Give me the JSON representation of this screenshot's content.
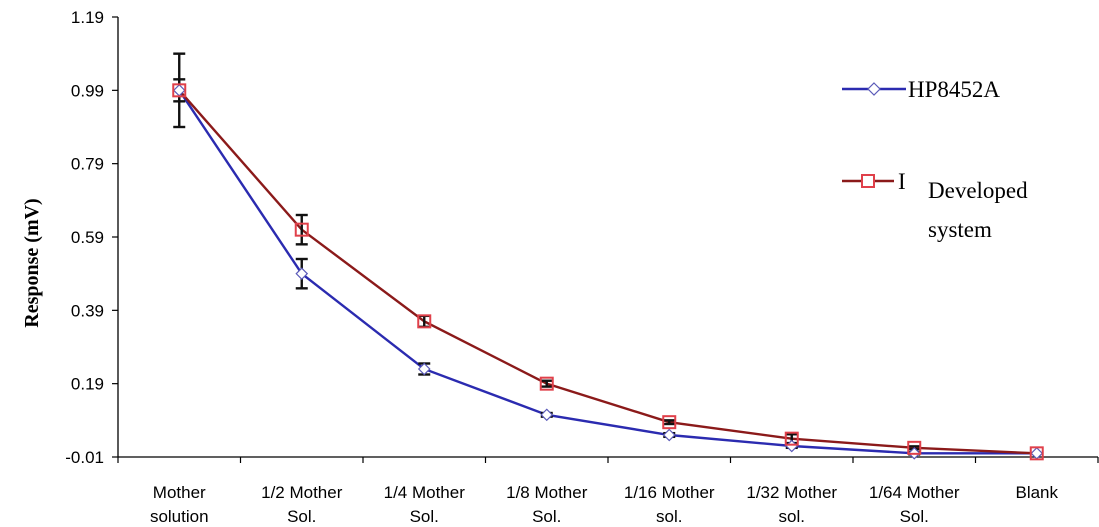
{
  "chart_data": {
    "type": "line",
    "categories": [
      [
        "Mother",
        "solution"
      ],
      [
        "1/2 Mother",
        "Sol."
      ],
      [
        "1/4 Mother",
        "Sol."
      ],
      [
        "1/8 Mother",
        "Sol."
      ],
      [
        "1/16 Mother",
        "sol."
      ],
      [
        "1/32 Mother",
        "sol."
      ],
      [
        "1/64 Mother",
        "Sol."
      ],
      [
        "Blank"
      ]
    ],
    "ylabel": "Response (mV)",
    "ylim": [
      -0.01,
      1.19
    ],
    "yticks": [
      "1.19",
      "0.99",
      "0.79",
      "0.59",
      "0.39",
      "0.19",
      "-0.01"
    ],
    "grid": false,
    "legend_position": "right",
    "series": [
      {
        "name": "HP8452A",
        "color": "#2b2bb0",
        "marker": "diamond",
        "values": [
          0.99,
          0.49,
          0.23,
          0.105,
          0.05,
          0.02,
          0.0,
          0.0
        ],
        "error": [
          0.1,
          0.04,
          0.015,
          0.005,
          0.005,
          0.005,
          0.003,
          0.0
        ]
      },
      {
        "name_parts": [
          "I",
          "Developed",
          "system"
        ],
        "color": "#8b1a1a",
        "marker_color": "#e0404a",
        "marker": "square",
        "values": [
          0.99,
          0.61,
          0.36,
          0.19,
          0.085,
          0.04,
          0.015,
          0.0
        ],
        "error": [
          0.03,
          0.04,
          0.015,
          0.008,
          0.005,
          0.012,
          0.004,
          0.0
        ]
      }
    ]
  }
}
